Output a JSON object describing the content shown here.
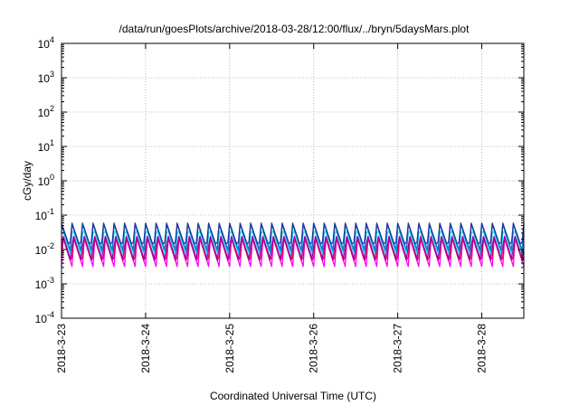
{
  "chart_data": {
    "type": "line",
    "title": "/data/run/goesPlots/archive/2018-03-28/12:00/flux/../bryn/5daysMars.plot",
    "xlabel": "Coordinated Universal Time (UTC)",
    "ylabel": "cGy/day",
    "x_tick_labels": [
      "2018-3-23",
      "2018-3-24",
      "2018-3-25",
      "2018-3-26",
      "2018-3-27",
      "2018-3-28"
    ],
    "y_tick_labels": [
      {
        "base": "10",
        "exp": "4"
      },
      {
        "base": "10",
        "exp": "3"
      },
      {
        "base": "10",
        "exp": "2"
      },
      {
        "base": "10",
        "exp": "1"
      },
      {
        "base": "10",
        "exp": "0"
      },
      {
        "base": "10",
        "exp": "-1"
      },
      {
        "base": "10",
        "exp": "-2"
      },
      {
        "base": "10",
        "exp": "-3"
      },
      {
        "base": "10",
        "exp": "-4"
      }
    ],
    "y_scale": "log",
    "ylim": [
      0.0001,
      10000
    ],
    "xlim": [
      "2018-03-23",
      "2018-03-28 12:00"
    ],
    "grid": true,
    "oscillation_period_hours": 3,
    "series": [
      {
        "color": "#ff00ff",
        "low": 0.0032,
        "high": 0.022
      },
      {
        "color": "#e00060",
        "low": 0.0036,
        "high": 0.025
      },
      {
        "color": "#9900aa",
        "low": 0.0045,
        "high": 0.03
      },
      {
        "color": "#00dddd",
        "low": 0.007,
        "high": 0.045
      },
      {
        "color": "#1c6fd8",
        "low": 0.0095,
        "high": 0.055
      },
      {
        "color": "#1a3a9e",
        "low": 0.011,
        "high": 0.065
      }
    ]
  }
}
